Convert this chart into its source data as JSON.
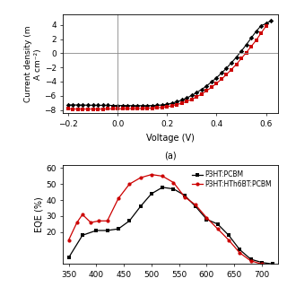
{
  "jv_black_x": [
    -0.2,
    -0.18,
    -0.16,
    -0.14,
    -0.12,
    -0.1,
    -0.08,
    -0.06,
    -0.04,
    -0.02,
    0.0,
    0.02,
    0.04,
    0.06,
    0.08,
    0.1,
    0.12,
    0.14,
    0.16,
    0.18,
    0.2,
    0.22,
    0.24,
    0.26,
    0.28,
    0.3,
    0.32,
    0.34,
    0.36,
    0.38,
    0.4,
    0.42,
    0.44,
    0.46,
    0.48,
    0.5,
    0.52,
    0.54,
    0.56,
    0.58,
    0.6,
    0.62
  ],
  "jv_black_y": [
    -7.3,
    -7.3,
    -7.3,
    -7.32,
    -7.33,
    -7.34,
    -7.35,
    -7.35,
    -7.36,
    -7.37,
    -7.38,
    -7.38,
    -7.39,
    -7.4,
    -7.4,
    -7.4,
    -7.4,
    -7.38,
    -7.35,
    -7.3,
    -7.2,
    -7.05,
    -6.85,
    -6.6,
    -6.3,
    -5.95,
    -5.55,
    -5.1,
    -4.6,
    -4.05,
    -3.45,
    -2.8,
    -2.1,
    -1.35,
    -0.55,
    0.3,
    1.2,
    2.15,
    3.1,
    3.9,
    4.2,
    4.6
  ],
  "jv_red_x": [
    -0.2,
    -0.18,
    -0.16,
    -0.14,
    -0.12,
    -0.1,
    -0.08,
    -0.06,
    -0.04,
    -0.02,
    0.0,
    0.02,
    0.04,
    0.06,
    0.08,
    0.1,
    0.12,
    0.14,
    0.16,
    0.18,
    0.2,
    0.22,
    0.24,
    0.26,
    0.28,
    0.3,
    0.32,
    0.34,
    0.36,
    0.38,
    0.4,
    0.42,
    0.44,
    0.46,
    0.48,
    0.5,
    0.52,
    0.54,
    0.56,
    0.58,
    0.6
  ],
  "jv_red_y": [
    -7.85,
    -7.87,
    -7.88,
    -7.88,
    -7.88,
    -7.88,
    -7.88,
    -7.88,
    -7.86,
    -7.85,
    -7.85,
    -7.85,
    -7.83,
    -7.82,
    -7.82,
    -7.8,
    -7.78,
    -7.75,
    -7.7,
    -7.65,
    -7.55,
    -7.42,
    -7.25,
    -7.05,
    -6.8,
    -6.5,
    -6.15,
    -5.75,
    -5.3,
    -4.8,
    -4.25,
    -3.65,
    -3.0,
    -2.3,
    -1.55,
    -0.75,
    0.1,
    0.95,
    1.85,
    2.85,
    3.85
  ],
  "jv_ylabel": "Current density (m",
  "jv_ylabel2": "A cm⁻²)",
  "jv_xlabel": "Voltage (V)",
  "jv_subtitle": "(a)",
  "jv_xlim": [
    -0.22,
    0.65
  ],
  "jv_ylim": [
    -8.5,
    5.5
  ],
  "jv_yticks": [
    -8,
    -6,
    -4,
    -2,
    0,
    2,
    4
  ],
  "jv_xticks": [
    -0.2,
    0.0,
    0.2,
    0.4,
    0.6
  ],
  "eqe_black_x": [
    350,
    375,
    400,
    420,
    440,
    460,
    480,
    500,
    520,
    540,
    560,
    580,
    600,
    620,
    640,
    660,
    680,
    700,
    720
  ],
  "eqe_black_y": [
    4,
    18,
    21,
    21,
    22,
    27,
    36,
    44,
    48,
    47,
    43,
    36,
    28,
    25,
    18,
    9,
    3,
    1,
    0
  ],
  "eqe_red_x": [
    350,
    365,
    375,
    390,
    405,
    420,
    440,
    460,
    480,
    500,
    520,
    540,
    560,
    580,
    600,
    620,
    640,
    660,
    680,
    700
  ],
  "eqe_red_y": [
    15,
    26,
    31,
    26,
    27,
    27,
    41,
    50,
    54,
    56,
    55,
    51,
    42,
    37,
    29,
    22,
    15,
    7,
    2,
    0
  ],
  "eqe_ylabel": "EQE (%)",
  "eqe_xlim": [
    340,
    730
  ],
  "eqe_ylim": [
    0,
    62
  ],
  "eqe_yticks": [
    20,
    30,
    40,
    50,
    60
  ],
  "legend_black": "P3HT:PCBM",
  "legend_red": "P3HT:HTh6BT:PCBM",
  "black_color": "#000000",
  "red_color": "#cc0000",
  "bg_color": "#ffffff"
}
